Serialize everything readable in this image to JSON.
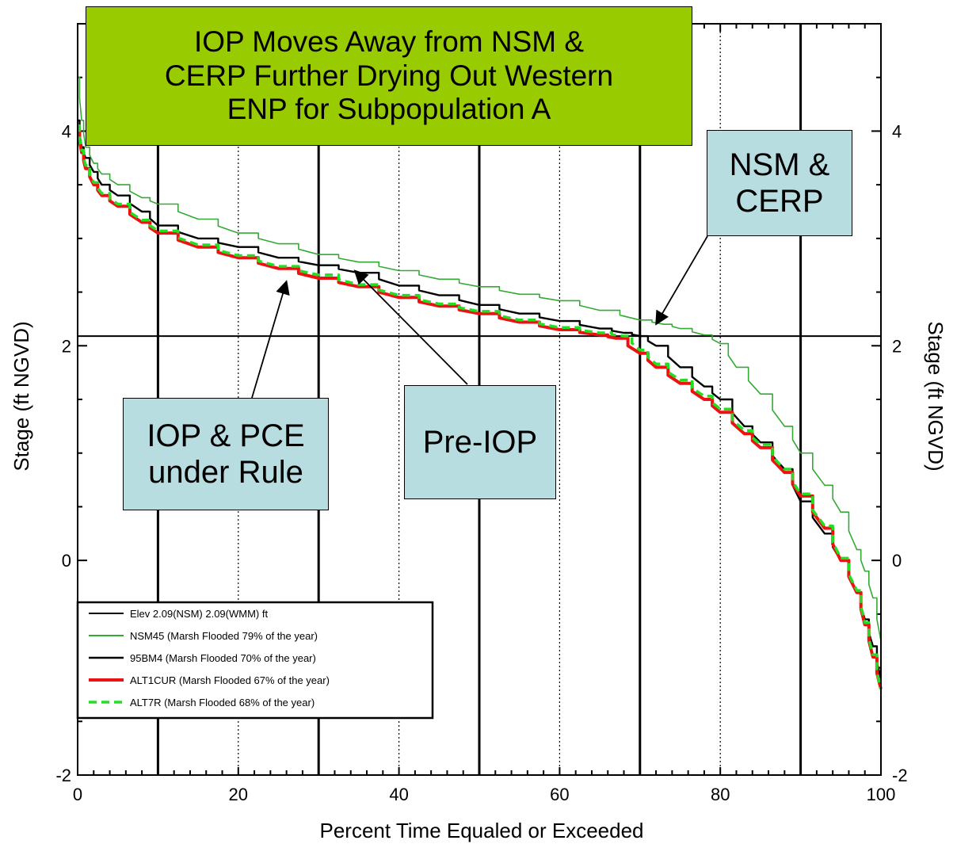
{
  "chart_data": {
    "type": "line",
    "xlabel": "Percent Time Equaled or Exceeded",
    "ylabel": "Stage (ft NGVD)",
    "ylabel_right": "Stage (ft NGVD)",
    "xlim": [
      0,
      100
    ],
    "ylim": [
      -2,
      5
    ],
    "x_ticks": [
      "0",
      "20",
      "40",
      "60",
      "80",
      "100"
    ],
    "y_ticks": [
      "-2",
      "0",
      "2",
      "4"
    ],
    "grid": "vertical",
    "reference_line": 2.09,
    "legend_position": "bottom-left",
    "series": [
      {
        "name": "Elev 2.09(NSM) 2.09(WMM) ft",
        "color": "#000000",
        "style": "thin",
        "x": [
          0,
          100
        ],
        "y": [
          2.09,
          2.09
        ]
      },
      {
        "name": "NSM45 (Marsh Flooded 79% of the year)",
        "color": "#33aa33",
        "style": "thin",
        "x": [
          0,
          0.5,
          1,
          2,
          3,
          5,
          8,
          10,
          15,
          20,
          25,
          30,
          35,
          40,
          45,
          50,
          55,
          60,
          65,
          70,
          73,
          75,
          78,
          80,
          82,
          85,
          88,
          90,
          93,
          95,
          97,
          98,
          99,
          100
        ],
        "y": [
          4.5,
          4.1,
          3.85,
          3.7,
          3.6,
          3.5,
          3.38,
          3.32,
          3.18,
          3.05,
          2.95,
          2.85,
          2.78,
          2.7,
          2.62,
          2.55,
          2.48,
          2.42,
          2.33,
          2.24,
          2.2,
          2.16,
          2.1,
          2.02,
          1.8,
          1.55,
          1.25,
          1.0,
          0.7,
          0.45,
          0.1,
          -0.1,
          -0.35,
          -0.75
        ]
      },
      {
        "name": "95BM4 (Marsh Flooded 70% of the year)",
        "color": "#000000",
        "style": "medium",
        "x": [
          0,
          0.5,
          1,
          2,
          3,
          5,
          8,
          10,
          15,
          20,
          25,
          30,
          35,
          40,
          45,
          50,
          55,
          60,
          65,
          68,
          70,
          72,
          75,
          78,
          80,
          83,
          85,
          88,
          90,
          93,
          95,
          97,
          98,
          99,
          100
        ],
        "y": [
          4.1,
          3.85,
          3.75,
          3.62,
          3.5,
          3.4,
          3.25,
          3.12,
          3.0,
          2.92,
          2.82,
          2.75,
          2.68,
          2.56,
          2.47,
          2.38,
          2.3,
          2.23,
          2.16,
          2.12,
          2.09,
          2.0,
          1.8,
          1.62,
          1.5,
          1.25,
          1.1,
          0.85,
          0.55,
          0.25,
          0.0,
          -0.3,
          -0.55,
          -0.8,
          -1.1
        ]
      },
      {
        "name": "ALT1CUR (Marsh Flooded 67% of the year)",
        "color": "#ee1111",
        "style": "thick",
        "x": [
          0,
          0.5,
          1,
          2,
          3,
          5,
          8,
          10,
          15,
          20,
          25,
          30,
          35,
          40,
          45,
          50,
          55,
          60,
          65,
          67,
          70,
          72,
          75,
          78,
          80,
          83,
          85,
          88,
          90,
          93,
          95,
          97,
          98,
          99,
          100
        ],
        "y": [
          4.0,
          3.8,
          3.65,
          3.5,
          3.4,
          3.3,
          3.15,
          3.05,
          2.92,
          2.82,
          2.72,
          2.63,
          2.55,
          2.45,
          2.37,
          2.3,
          2.22,
          2.15,
          2.1,
          2.07,
          1.93,
          1.8,
          1.65,
          1.5,
          1.38,
          1.18,
          1.05,
          0.82,
          0.6,
          0.3,
          0.0,
          -0.3,
          -0.6,
          -0.9,
          -1.2
        ]
      },
      {
        "name": "ALT7R (Marsh Flooded 68% of the year)",
        "color": "#22dd22",
        "style": "dashed",
        "x": [
          0,
          0.5,
          1,
          2,
          3,
          5,
          8,
          10,
          15,
          20,
          25,
          30,
          35,
          40,
          45,
          50,
          55,
          60,
          65,
          68,
          70,
          72,
          75,
          78,
          80,
          83,
          85,
          88,
          90,
          93,
          95,
          97,
          98,
          99,
          100
        ],
        "y": [
          4.05,
          3.82,
          3.68,
          3.52,
          3.42,
          3.32,
          3.17,
          3.07,
          2.94,
          2.84,
          2.74,
          2.66,
          2.57,
          2.47,
          2.39,
          2.32,
          2.24,
          2.17,
          2.12,
          2.09,
          1.96,
          1.83,
          1.68,
          1.53,
          1.41,
          1.21,
          1.08,
          0.85,
          0.62,
          0.32,
          0.02,
          -0.28,
          -0.58,
          -0.88,
          -1.2
        ]
      }
    ],
    "annotations": [
      {
        "id": "title",
        "text": "IOP Moves Away from NSM & CERP Further Drying Out Western ENP for Subpopulation A"
      },
      {
        "id": "nsm",
        "text": "NSM & CERP",
        "points_to": [
          72,
          2.2
        ]
      },
      {
        "id": "pre",
        "text": "Pre-IOP",
        "points_to": [
          34.5,
          2.7
        ]
      },
      {
        "id": "iop",
        "text": "IOP & PCE under Rule",
        "points_to": [
          26,
          2.6
        ]
      }
    ]
  },
  "title_box": {
    "line1": "IOP Moves Away from NSM &",
    "line2": "CERP Further Drying Out Western",
    "line3": "ENP for Subpopulation A",
    "color": "#99cc00"
  },
  "nsm_box": {
    "line1": "NSM &",
    "line2": "CERP",
    "color": "#b7dde1"
  },
  "pre_box": {
    "line1": "Pre-IOP",
    "color": "#b7dde1"
  },
  "iop_box": {
    "line1": "IOP & PCE",
    "line2": "under Rule",
    "color": "#b7dde1"
  }
}
